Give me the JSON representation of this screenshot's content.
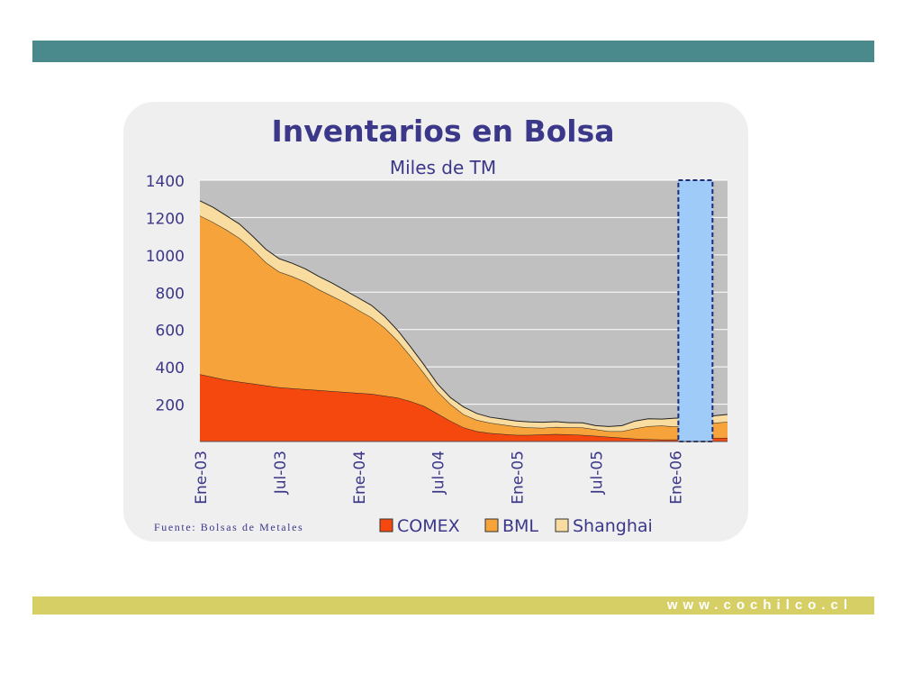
{
  "slide": {
    "url_text": "www.cochilco.cl",
    "source": "Fuente: Bolsas de Metales",
    "colors": {
      "top_bar": "#4a8a8c",
      "bottom_bar": "#d6cf66",
      "panel": "#efefef"
    }
  },
  "chart_data": {
    "type": "area",
    "title": "Inventarios en Bolsa",
    "subtitle": "Miles de TM",
    "xlabel": "",
    "ylabel": "",
    "ylim": [
      0,
      1400
    ],
    "yticks": [
      200,
      400,
      600,
      800,
      1000,
      1200,
      1400
    ],
    "x_tick_labels": [
      "Ene-03",
      "Jul-03",
      "Ene-04",
      "Jul-04",
      "Ene-05",
      "Jul-05",
      "Ene-06"
    ],
    "x": [
      "2003-01",
      "2003-02",
      "2003-03",
      "2003-04",
      "2003-05",
      "2003-06",
      "2003-07",
      "2003-08",
      "2003-09",
      "2003-10",
      "2003-11",
      "2003-12",
      "2004-01",
      "2004-02",
      "2004-03",
      "2004-04",
      "2004-05",
      "2004-06",
      "2004-07",
      "2004-08",
      "2004-09",
      "2004-10",
      "2004-11",
      "2004-12",
      "2005-01",
      "2005-02",
      "2005-03",
      "2005-04",
      "2005-05",
      "2005-06",
      "2005-07",
      "2005-08",
      "2005-09",
      "2005-10",
      "2005-11",
      "2005-12",
      "2006-01",
      "2006-02",
      "2006-03",
      "2006-04",
      "2006-05"
    ],
    "stacked": true,
    "grid": true,
    "legend_position": "bottom",
    "series": [
      {
        "name": "COMEX",
        "color": "#f5480f",
        "values": [
          360,
          345,
          330,
          320,
          310,
          300,
          290,
          285,
          280,
          275,
          270,
          265,
          260,
          255,
          245,
          235,
          215,
          190,
          150,
          110,
          75,
          55,
          45,
          40,
          35,
          35,
          38,
          40,
          38,
          35,
          30,
          25,
          20,
          15,
          12,
          10,
          10,
          12,
          15,
          18,
          20
        ]
      },
      {
        "name": "BML",
        "color": "#f5a33a",
        "values": [
          850,
          830,
          805,
          770,
          720,
          660,
          620,
          600,
          575,
          540,
          510,
          480,
          445,
          410,
          365,
          305,
          240,
          175,
          120,
          90,
          70,
          60,
          55,
          50,
          45,
          40,
          35,
          38,
          38,
          40,
          35,
          30,
          35,
          55,
          70,
          75,
          70,
          75,
          80,
          82,
          85
        ]
      },
      {
        "name": "Shanghai",
        "color": "#f8dca0",
        "values": [
          80,
          80,
          75,
          75,
          70,
          70,
          70,
          70,
          70,
          70,
          70,
          65,
          65,
          65,
          60,
          55,
          50,
          45,
          40,
          35,
          40,
          35,
          30,
          30,
          30,
          30,
          30,
          28,
          25,
          25,
          20,
          25,
          30,
          40,
          40,
          35,
          45,
          40,
          40,
          38,
          40
        ]
      }
    ]
  }
}
